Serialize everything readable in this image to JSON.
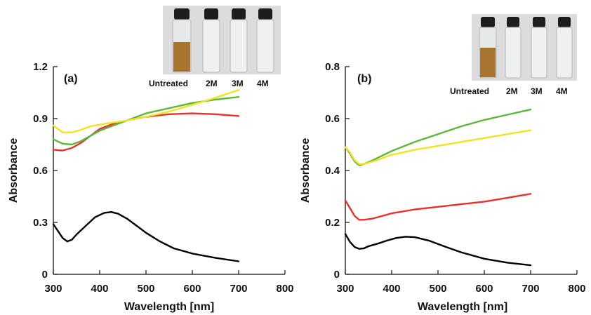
{
  "chart_data": [
    {
      "type": "line",
      "panel_label": "(a)",
      "xlabel": "Wavelength [nm]",
      "ylabel": "Absorbance",
      "xlim": [
        300,
        800
      ],
      "ylim": [
        0,
        1.2
      ],
      "xticks": [
        "300",
        "400",
        "500",
        "600",
        "700",
        "800"
      ],
      "yticks": [
        "0",
        "0.3",
        "0.6",
        "0.9",
        "1.2"
      ],
      "inset_labels": [
        "Untreated",
        "2M",
        "3M",
        "4M"
      ],
      "series": [
        {
          "color": "#000000",
          "x": [
            300,
            310,
            320,
            330,
            340,
            350,
            370,
            390,
            410,
            425,
            440,
            460,
            480,
            500,
            530,
            560,
            600,
            650,
            700
          ],
          "y": [
            0.29,
            0.25,
            0.21,
            0.19,
            0.2,
            0.23,
            0.28,
            0.33,
            0.355,
            0.36,
            0.35,
            0.32,
            0.28,
            0.24,
            0.19,
            0.15,
            0.12,
            0.095,
            0.075
          ]
        },
        {
          "color": "#e8312a",
          "x": [
            300,
            320,
            340,
            360,
            380,
            400,
            430,
            460,
            500,
            550,
            600,
            650,
            700
          ],
          "y": [
            0.72,
            0.715,
            0.73,
            0.76,
            0.8,
            0.84,
            0.87,
            0.89,
            0.91,
            0.925,
            0.93,
            0.925,
            0.915
          ]
        },
        {
          "color": "#5cb83a",
          "x": [
            300,
            320,
            340,
            360,
            380,
            400,
            450,
            500,
            550,
            600,
            650,
            700
          ],
          "y": [
            0.78,
            0.755,
            0.75,
            0.77,
            0.8,
            0.83,
            0.88,
            0.93,
            0.96,
            0.99,
            1.01,
            1.025
          ]
        },
        {
          "color": "#f2e222",
          "x": [
            300,
            320,
            340,
            360,
            380,
            400,
            450,
            500,
            550,
            600,
            650,
            700
          ],
          "y": [
            0.86,
            0.82,
            0.82,
            0.835,
            0.855,
            0.865,
            0.885,
            0.91,
            0.94,
            0.98,
            1.02,
            1.065
          ]
        }
      ]
    },
    {
      "type": "line",
      "panel_label": "(b)",
      "xlabel": "Wavelength [nm]",
      "ylabel": "Absorbance",
      "xlim": [
        300,
        800
      ],
      "ylim": [
        0,
        0.8
      ],
      "xticks": [
        "300",
        "400",
        "500",
        "600",
        "700",
        "800"
      ],
      "yticks": [
        "0",
        "0.2",
        "0.4",
        "0.6",
        "0.8"
      ],
      "inset_labels": [
        "Untreated",
        "2M",
        "3M",
        "4M"
      ],
      "series": [
        {
          "color": "#000000",
          "x": [
            300,
            310,
            320,
            330,
            340,
            350,
            370,
            390,
            410,
            430,
            450,
            480,
            510,
            550,
            600,
            650,
            700
          ],
          "y": [
            0.155,
            0.125,
            0.105,
            0.098,
            0.1,
            0.108,
            0.118,
            0.13,
            0.14,
            0.145,
            0.143,
            0.13,
            0.11,
            0.085,
            0.06,
            0.045,
            0.035
          ]
        },
        {
          "color": "#e8312a",
          "x": [
            300,
            310,
            320,
            330,
            340,
            360,
            400,
            450,
            500,
            550,
            600,
            650,
            700
          ],
          "y": [
            0.285,
            0.255,
            0.225,
            0.21,
            0.21,
            0.215,
            0.235,
            0.25,
            0.26,
            0.27,
            0.28,
            0.295,
            0.31
          ]
        },
        {
          "color": "#5cb83a",
          "x": [
            300,
            310,
            320,
            330,
            340,
            360,
            400,
            450,
            500,
            550,
            600,
            650,
            700
          ],
          "y": [
            0.49,
            0.465,
            0.435,
            0.42,
            0.425,
            0.44,
            0.475,
            0.51,
            0.54,
            0.57,
            0.595,
            0.615,
            0.635
          ]
        },
        {
          "color": "#f2e222",
          "x": [
            300,
            310,
            320,
            330,
            340,
            360,
            400,
            450,
            500,
            550,
            600,
            650,
            700
          ],
          "y": [
            0.49,
            0.47,
            0.44,
            0.425,
            0.425,
            0.435,
            0.46,
            0.48,
            0.495,
            0.51,
            0.525,
            0.54,
            0.555
          ]
        }
      ]
    }
  ]
}
